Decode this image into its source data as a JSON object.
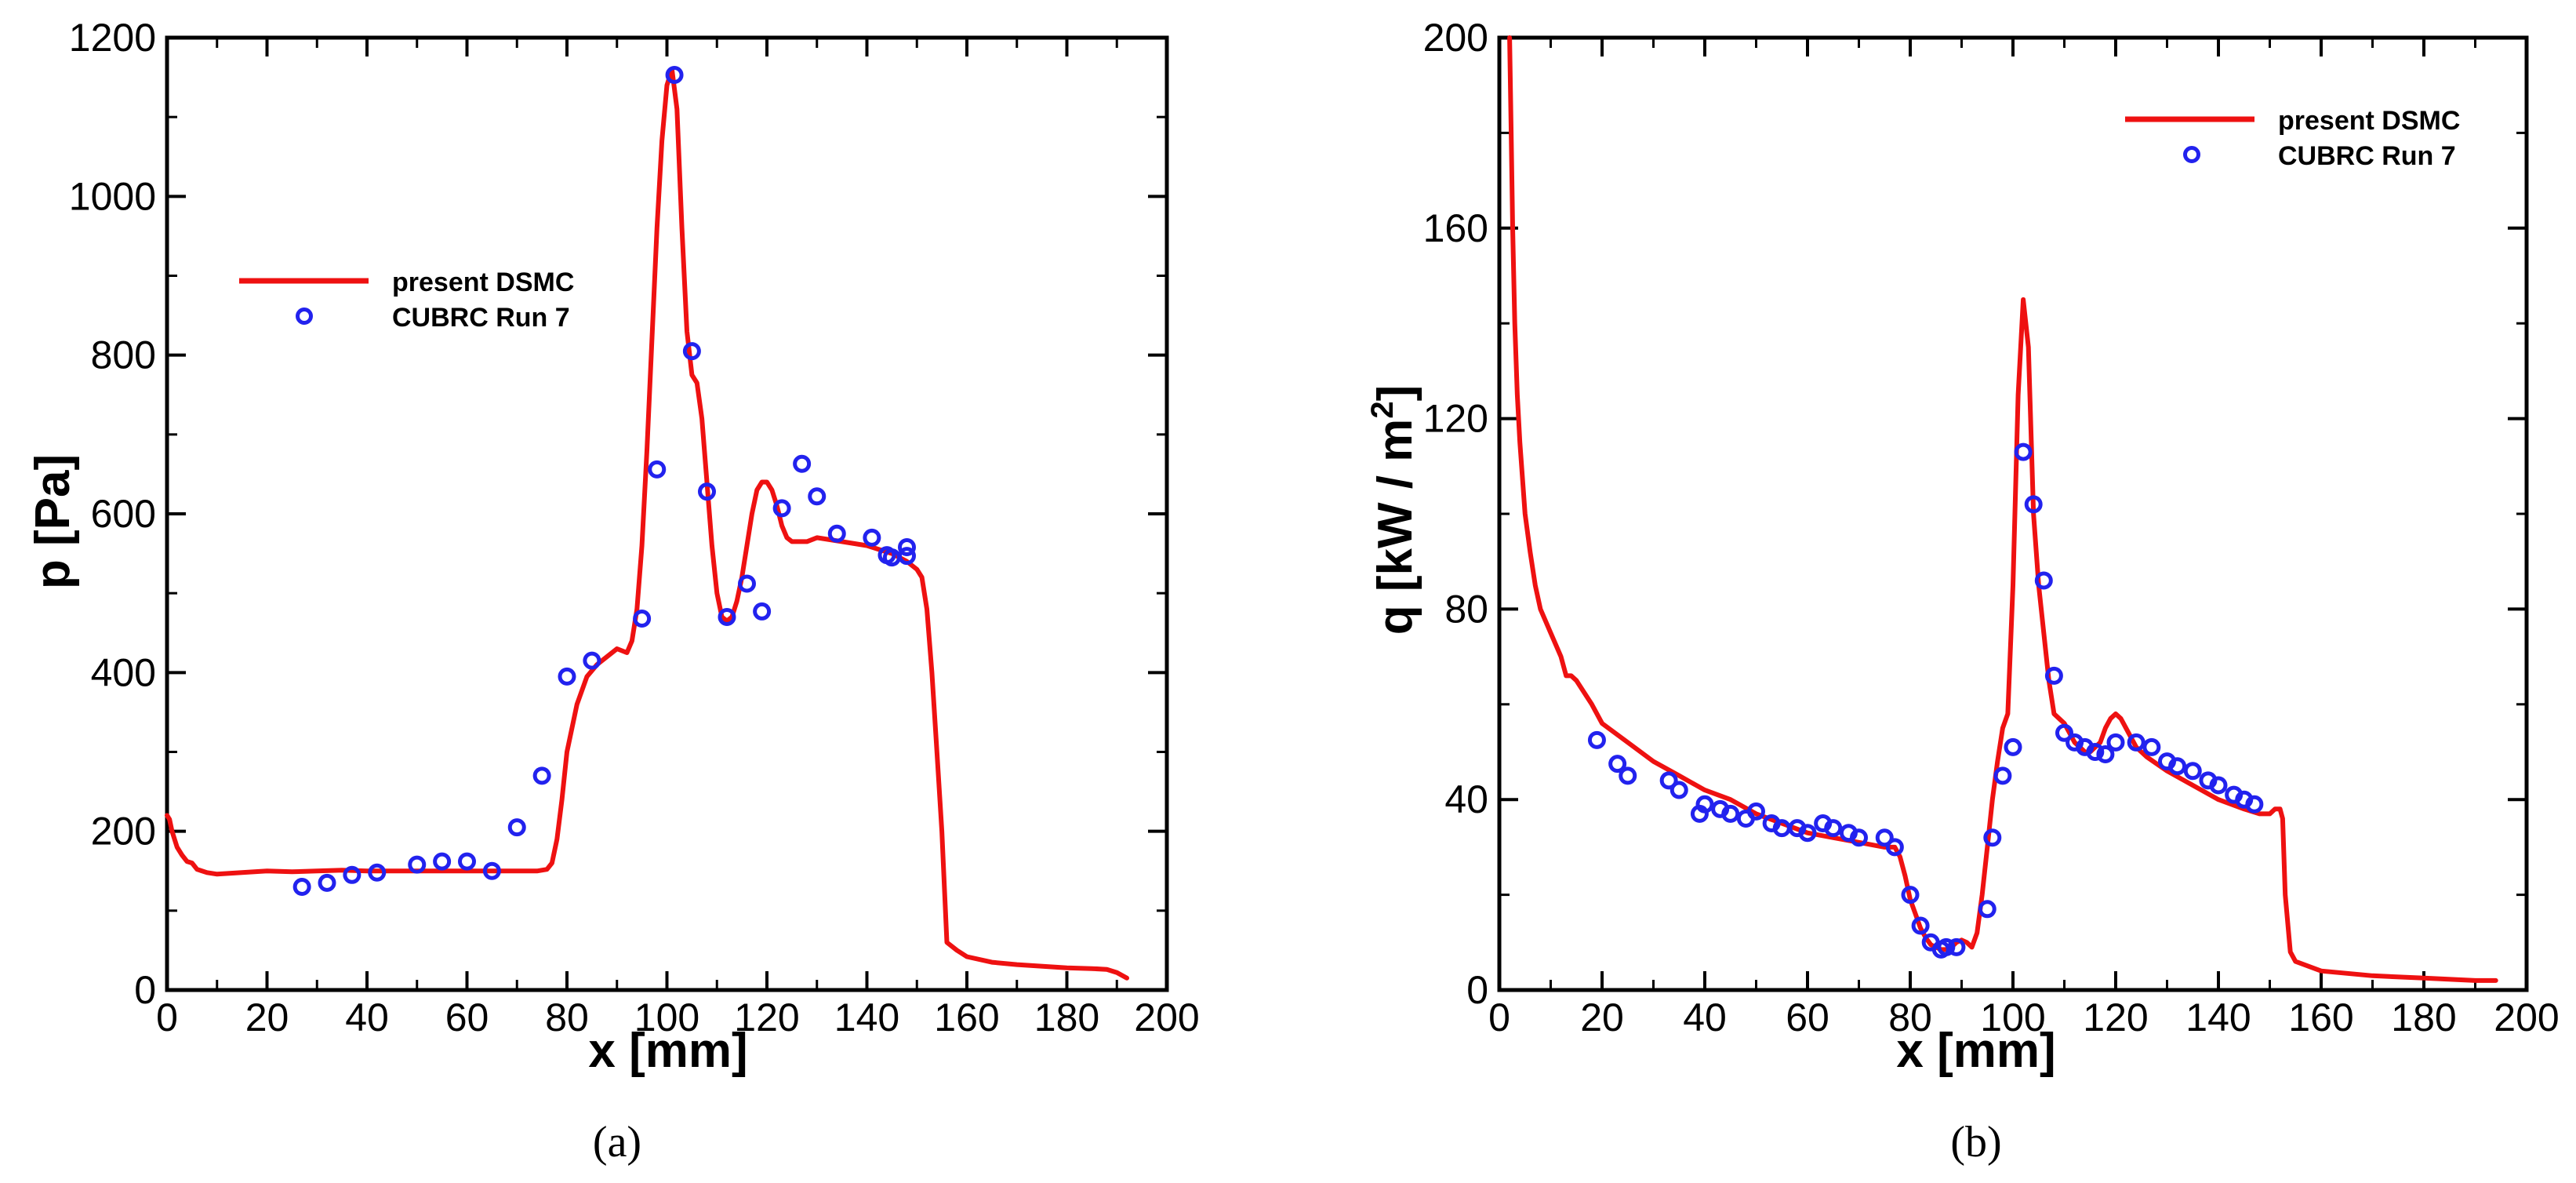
{
  "chart_data": [
    {
      "type": "line",
      "caption": "(a)",
      "xlabel": "x [mm]",
      "ylabel": "p [Pa]",
      "xlim": [
        0,
        200
      ],
      "ylim": [
        0,
        1200
      ],
      "xticks": [
        0,
        20,
        40,
        60,
        80,
        100,
        120,
        140,
        160,
        180,
        200
      ],
      "yticks": [
        0,
        200,
        400,
        600,
        800,
        1000,
        1200
      ],
      "grid": false,
      "legend_position": "upper-left",
      "series": [
        {
          "name": "present DSMC",
          "kind": "line",
          "color": "#ee1111",
          "x": [
            0,
            0.5,
            1,
            2,
            3,
            4,
            5,
            6,
            8,
            10,
            15,
            20,
            25,
            30,
            35,
            40,
            50,
            60,
            70,
            74,
            76,
            77,
            78,
            79,
            80,
            82,
            84,
            86,
            88,
            90,
            92,
            93,
            94,
            95,
            96,
            97,
            98,
            99,
            100,
            101,
            102,
            103,
            104,
            105,
            106,
            107,
            108,
            109,
            110,
            111,
            112,
            113,
            114,
            115,
            116,
            117,
            118,
            119,
            120,
            121,
            122,
            123,
            124,
            125,
            126,
            128,
            130,
            135,
            140,
            145,
            148,
            150,
            151,
            152,
            153,
            154,
            155,
            156,
            158,
            160,
            165,
            170,
            180,
            185,
            188,
            190,
            192
          ],
          "y": [
            220,
            215,
            200,
            180,
            170,
            162,
            160,
            152,
            148,
            146,
            148,
            150,
            149,
            150,
            151,
            150,
            150,
            150,
            150,
            150,
            152,
            160,
            190,
            240,
            300,
            360,
            395,
            410,
            420,
            430,
            425,
            440,
            480,
            560,
            680,
            820,
            960,
            1070,
            1140,
            1160,
            1110,
            960,
            830,
            775,
            765,
            720,
            640,
            560,
            500,
            470,
            465,
            470,
            490,
            520,
            560,
            600,
            630,
            640,
            640,
            630,
            610,
            585,
            570,
            565,
            565,
            565,
            570,
            565,
            560,
            550,
            540,
            530,
            520,
            480,
            400,
            300,
            200,
            60,
            50,
            42,
            35,
            32,
            28,
            27,
            26,
            22,
            15
          ]
        },
        {
          "name": "CUBRC Run 7",
          "kind": "scatter",
          "color": "#2222ee",
          "x": [
            27,
            32,
            37,
            42,
            50,
            55,
            60,
            65,
            70,
            75,
            80,
            85,
            95,
            98,
            101.5,
            105,
            108,
            112,
            116,
            119,
            123,
            127,
            130,
            134,
            141,
            144,
            145,
            148,
            148
          ],
          "y": [
            130,
            135,
            145,
            148,
            158,
            162,
            162,
            150,
            205,
            270,
            395,
            415,
            468,
            656,
            1153,
            805,
            628,
            470,
            512,
            477,
            607,
            663,
            622,
            575,
            570,
            548,
            545,
            547,
            558
          ]
        }
      ]
    },
    {
      "type": "line",
      "caption": "(b)",
      "xlabel": "x [mm]",
      "ylabel": "q [kW / m²]",
      "ylabel_main": "q [kW / m",
      "ylabel_sup": "2",
      "ylabel_end": "]",
      "xlim": [
        0,
        200
      ],
      "ylim": [
        0,
        200
      ],
      "xticks": [
        0,
        20,
        40,
        60,
        80,
        100,
        120,
        140,
        160,
        180,
        200
      ],
      "yticks": [
        0,
        40,
        80,
        120,
        160,
        200
      ],
      "grid": false,
      "legend_position": "upper-right",
      "series": [
        {
          "name": "present DSMC",
          "kind": "line",
          "color": "#ee1111",
          "x": [
            2,
            2.3,
            2.6,
            3,
            3.5,
            4,
            5,
            6,
            7,
            8,
            10,
            12,
            13,
            14,
            15,
            18,
            20,
            25,
            30,
            35,
            40,
            45,
            50,
            55,
            60,
            65,
            70,
            75,
            77,
            78,
            79,
            80,
            81,
            82,
            83,
            84,
            85,
            86,
            87,
            88,
            89,
            90,
            91,
            92,
            93,
            94,
            95,
            96,
            97,
            98,
            99,
            100,
            101,
            102,
            103,
            104,
            105,
            106,
            107,
            108,
            109,
            110,
            111,
            112,
            113,
            114,
            115,
            116,
            117,
            118,
            119,
            120,
            121,
            122,
            124,
            126,
            130,
            135,
            140,
            145,
            148,
            150,
            151,
            152,
            152.5,
            153,
            154,
            155,
            160,
            170,
            180,
            190,
            194
          ],
          "y": [
            200,
            180,
            160,
            140,
            125,
            115,
            100,
            92,
            85,
            80,
            75,
            70,
            66,
            66,
            65,
            60,
            56,
            52,
            48,
            45,
            42,
            40,
            37,
            35,
            33,
            32,
            31,
            30,
            30,
            28,
            24,
            19,
            16,
            13,
            11,
            9.5,
            9,
            8.5,
            8.5,
            9,
            10,
            10.5,
            10,
            9,
            12,
            20,
            30,
            40,
            48,
            55,
            58,
            85,
            125,
            145,
            135,
            100,
            85,
            75,
            65,
            58,
            57,
            56,
            54,
            52,
            51,
            50,
            50,
            51,
            52,
            55,
            57,
            58,
            57,
            55,
            51,
            49,
            46,
            43,
            40,
            38,
            37,
            37,
            38,
            38,
            36,
            20,
            8,
            6,
            4,
            3,
            2.5,
            2,
            2
          ]
        },
        {
          "name": "CUBRC Run 7",
          "kind": "scatter",
          "color": "#2222ee",
          "x": [
            19,
            23,
            25,
            33,
            35,
            39,
            40,
            43,
            45,
            48,
            50,
            53,
            55,
            58,
            60,
            63,
            65,
            68,
            70,
            75,
            77,
            80,
            82,
            84,
            86,
            87,
            89,
            95,
            96,
            98,
            100,
            102,
            104,
            106,
            108,
            110,
            112,
            114,
            116,
            118,
            120,
            124,
            127,
            130,
            132,
            135,
            138,
            140,
            143,
            145,
            147
          ],
          "y": [
            52.5,
            47.5,
            45,
            44,
            42,
            37,
            39,
            38,
            37,
            36,
            37.5,
            35,
            34,
            34,
            33,
            35,
            34,
            33,
            32,
            32,
            30,
            20,
            13.5,
            10,
            8.5,
            9,
            9,
            17,
            32,
            45,
            51,
            113,
            102,
            86,
            66,
            54,
            52,
            51,
            50,
            49.5,
            52,
            52,
            51,
            48,
            47,
            46,
            44,
            43,
            41,
            40,
            39
          ]
        }
      ]
    }
  ]
}
